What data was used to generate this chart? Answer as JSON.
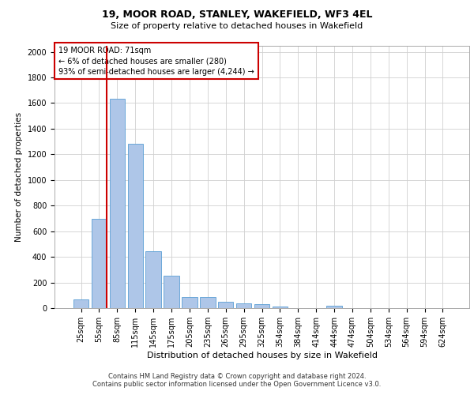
{
  "title1": "19, MOOR ROAD, STANLEY, WAKEFIELD, WF3 4EL",
  "title2": "Size of property relative to detached houses in Wakefield",
  "xlabel": "Distribution of detached houses by size in Wakefield",
  "ylabel": "Number of detached properties",
  "bar_color": "#aec6e8",
  "bar_edge_color": "#5a9fd4",
  "categories": [
    "25sqm",
    "55sqm",
    "85sqm",
    "115sqm",
    "145sqm",
    "175sqm",
    "205sqm",
    "235sqm",
    "265sqm",
    "295sqm",
    "325sqm",
    "354sqm",
    "384sqm",
    "414sqm",
    "444sqm",
    "474sqm",
    "504sqm",
    "534sqm",
    "564sqm",
    "594sqm",
    "624sqm"
  ],
  "values": [
    65,
    695,
    1635,
    1285,
    445,
    252,
    88,
    88,
    48,
    38,
    28,
    15,
    0,
    0,
    18,
    0,
    0,
    0,
    0,
    0,
    0
  ],
  "ylim": [
    0,
    2050
  ],
  "yticks": [
    0,
    200,
    400,
    600,
    800,
    1000,
    1200,
    1400,
    1600,
    1800,
    2000
  ],
  "vline_color": "#cc0000",
  "vline_x": 1.43,
  "annotation_text": "19 MOOR ROAD: 71sqm\n← 6% of detached houses are smaller (280)\n93% of semi-detached houses are larger (4,244) →",
  "annotation_box_color": "#ffffff",
  "annotation_box_edge": "#cc0000",
  "footer1": "Contains HM Land Registry data © Crown copyright and database right 2024.",
  "footer2": "Contains public sector information licensed under the Open Government Licence v3.0.",
  "background_color": "#ffffff",
  "grid_color": "#d0d0d0",
  "title1_fontsize": 9,
  "title2_fontsize": 8,
  "ylabel_fontsize": 7.5,
  "xlabel_fontsize": 8,
  "tick_fontsize": 7,
  "annotation_fontsize": 7,
  "footer_fontsize": 6
}
